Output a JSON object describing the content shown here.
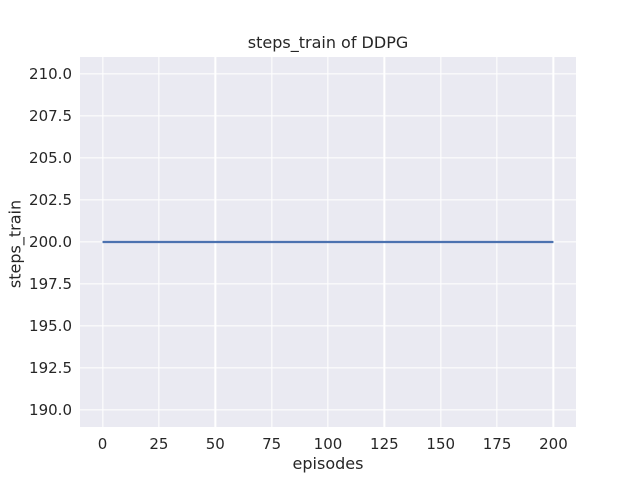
{
  "chart_data": {
    "type": "line",
    "title": "steps_train of DDPG",
    "xlabel": "episodes",
    "ylabel": "steps_train",
    "xlim": [
      -10,
      210
    ],
    "ylim": [
      189,
      211
    ],
    "xtick_values": [
      0,
      25,
      50,
      75,
      100,
      125,
      150,
      175,
      200
    ],
    "xtick_labels": [
      "0",
      "25",
      "50",
      "75",
      "100",
      "125",
      "150",
      "175",
      "200"
    ],
    "ytick_values": [
      190.0,
      192.5,
      195.0,
      197.5,
      200.0,
      202.5,
      205.0,
      207.5,
      210.0
    ],
    "ytick_labels": [
      "190.0",
      "192.5",
      "195.0",
      "197.5",
      "200.0",
      "202.5",
      "205.0",
      "207.5",
      "210.0"
    ],
    "grid": true,
    "legend": false,
    "series": [
      {
        "name": "steps_train",
        "color": "#4c72b0",
        "x": [
          0,
          200
        ],
        "y": [
          200,
          200
        ]
      }
    ],
    "colors": {
      "figure_bg": "#ffffff",
      "plot_bg": "#eaeaf2",
      "grid": "#ffffff",
      "text": "#262626",
      "line": "#4c72b0"
    }
  }
}
